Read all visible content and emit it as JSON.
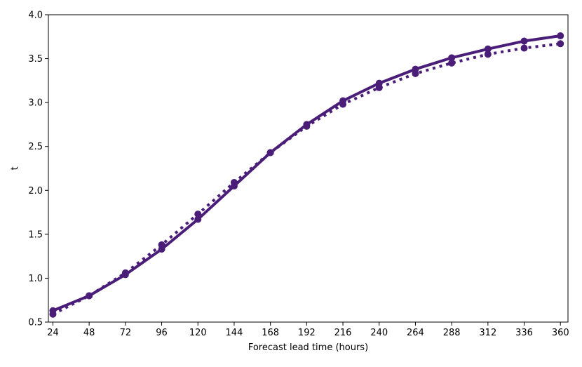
{
  "chart_data": {
    "type": "line",
    "title": "",
    "xlabel": "Forecast lead time (hours)",
    "ylabel": "t",
    "x": [
      24,
      48,
      72,
      96,
      120,
      144,
      168,
      192,
      216,
      240,
      264,
      288,
      312,
      336,
      360
    ],
    "xticks": [
      "24",
      "48",
      "72",
      "96",
      "120",
      "144",
      "168",
      "192",
      "216",
      "240",
      "264",
      "288",
      "312",
      "336",
      "360"
    ],
    "yticks": [
      "0.5",
      "1.0",
      "1.5",
      "2.0",
      "2.5",
      "3.0",
      "3.5",
      "4.0"
    ],
    "xlim": [
      21,
      365
    ],
    "ylim": [
      0.5,
      4.0
    ],
    "grid": false,
    "legend": "none",
    "series": [
      {
        "style": "solid",
        "color": "#4a1e78",
        "marker": "circle",
        "values": [
          0.63,
          0.8,
          1.04,
          1.33,
          1.67,
          2.05,
          2.43,
          2.75,
          3.02,
          3.22,
          3.38,
          3.51,
          3.61,
          3.7,
          3.76
        ]
      },
      {
        "style": "dotted",
        "color": "#4a1e78",
        "marker": "circle",
        "values": [
          0.59,
          0.8,
          1.06,
          1.38,
          1.73,
          2.09,
          2.43,
          2.73,
          2.98,
          3.17,
          3.33,
          3.45,
          3.55,
          3.62,
          3.67
        ]
      }
    ]
  }
}
